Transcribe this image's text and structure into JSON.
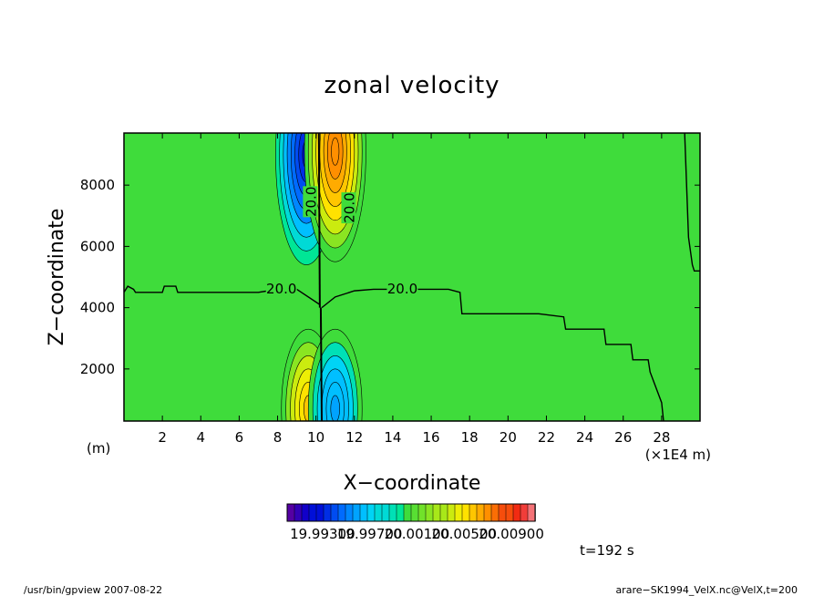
{
  "chart_data": {
    "type": "heatmap",
    "title": "zonal velocity",
    "xlabel": "X−coordinate",
    "ylabel": "Z−coordinate",
    "x_unit_left": "(m)",
    "x_unit_right": "(×1E4 m)",
    "xlim": [
      0,
      30
    ],
    "ylim": [
      300,
      9700
    ],
    "x_ticks": [
      2,
      4,
      6,
      8,
      10,
      12,
      14,
      16,
      18,
      20,
      22,
      24,
      26,
      28
    ],
    "y_ticks": [
      2000,
      4000,
      6000,
      8000
    ],
    "colorbar": {
      "min": 19.99,
      "max": 20.011,
      "tick_values": [
        19.993,
        19.997,
        20.001,
        20.005,
        20.009
      ],
      "tick_labels": [
        "19.99300",
        "19.99700",
        "20.00100",
        "20.00500",
        "20.00900"
      ]
    },
    "background_value": 20.0,
    "features": [
      {
        "x": 9.5,
        "z": 9000,
        "value": 19.9925,
        "note": "negative lobe upper"
      },
      {
        "x": 11.0,
        "z": 9100,
        "value": 20.0075,
        "note": "positive lobe upper"
      },
      {
        "x": 9.6,
        "z": 700,
        "value": 20.006,
        "note": "positive lobe lower"
      },
      {
        "x": 11.0,
        "z": 700,
        "value": 19.996,
        "note": "negative lobe lower"
      }
    ],
    "contour_labels": [
      "20.0",
      "20.0",
      "20.0",
      "20.0"
    ],
    "time_label": "t=192 s"
  },
  "footer": {
    "left": "/usr/bin/gpview   2007-08-22",
    "right": "arare−SK1994_VelX.nc@VelX,t=200"
  }
}
